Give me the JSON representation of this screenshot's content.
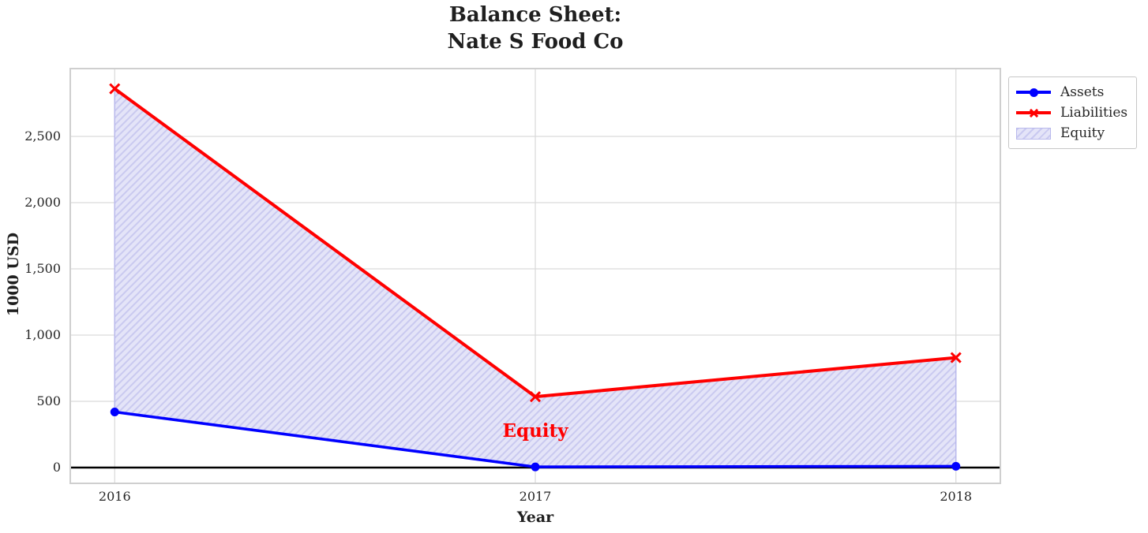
{
  "chart_data": {
    "type": "line",
    "title": "Balance Sheet:\nNate S Food Co",
    "title_lines": [
      "Balance Sheet:",
      "Nate S Food Co"
    ],
    "xlabel": "Year",
    "ylabel": "1000 USD",
    "x": [
      2016,
      2017,
      2018
    ],
    "x_tick_labels": [
      "2016",
      "2017",
      "2018"
    ],
    "y_ticks": [
      0,
      500,
      1000,
      1500,
      2000,
      2500
    ],
    "y_tick_labels": [
      "0",
      "500",
      "1,000",
      "1,500",
      "2,000",
      "2,500"
    ],
    "ylim": [
      -113,
      3006
    ],
    "x_pad_frac": 0.047,
    "grid": true,
    "legend_position": "outside-upper-right",
    "series": [
      {
        "name": "Assets",
        "color": "#0000ff",
        "marker": "circle",
        "values": [
          420,
          5,
          10
        ]
      },
      {
        "name": "Liabilities",
        "color": "#ff0000",
        "marker": "x",
        "values": [
          2860,
          535,
          830
        ]
      }
    ],
    "equity_area": {
      "name": "Equity",
      "between": [
        "Assets",
        "Liabilities"
      ],
      "base_color": "#e4e4f8",
      "hatch_color": "#c9c9f0",
      "edge_color": "#b9b9ec",
      "hatch_style": "/"
    },
    "annotation": {
      "text": "Equity",
      "x": 2017,
      "y": 280,
      "color": "#ff0000"
    },
    "zero_line": {
      "show": true,
      "color": "#000000"
    },
    "legend_entries": [
      "Assets",
      "Liabilities",
      "Equity"
    ],
    "colors": {
      "grid": "#d9d9d9",
      "spine": "#cfcfcf",
      "tick_text": "#262626",
      "title_text": "#1f1f1f"
    }
  }
}
